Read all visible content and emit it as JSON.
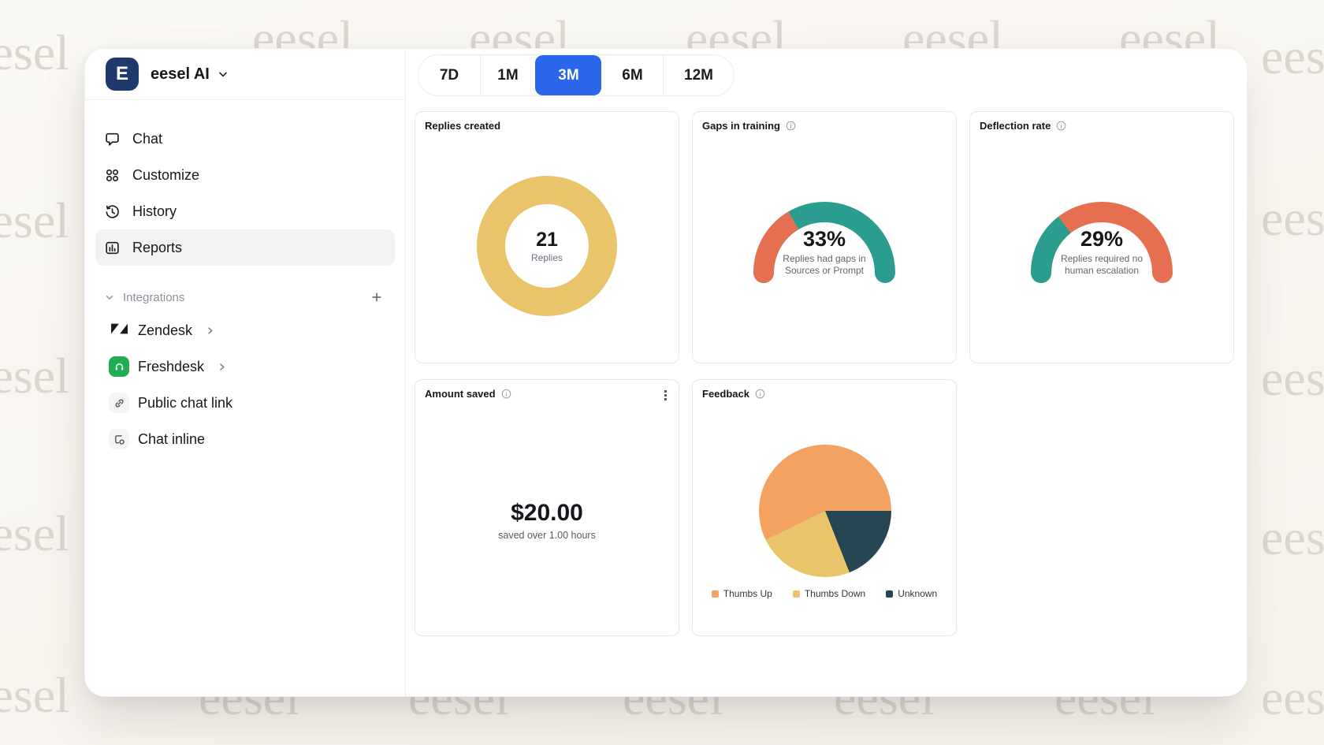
{
  "watermark": {
    "text": "eesel"
  },
  "colors": {
    "accent_blue": "#2B65E9",
    "logo_navy": "#1E3A6D",
    "freshdesk_green": "#22AD52",
    "chart_yellow": "#E9C46A",
    "chart_orange": "#F4A261",
    "chart_salmon": "#E76F51",
    "chart_teal": "#2A9D8F",
    "chart_charcoal": "#264653"
  },
  "sidebar": {
    "workspace": {
      "initial": "E",
      "name": "eesel AI"
    },
    "nav": [
      {
        "label": "Chat",
        "icon": "chat-bubble",
        "active": false
      },
      {
        "label": "Customize",
        "icon": "grid-dots",
        "active": false
      },
      {
        "label": "History",
        "icon": "clock-history",
        "active": false
      },
      {
        "label": "Reports",
        "icon": "bar-chart",
        "active": true
      }
    ],
    "integrations": {
      "label": "Integrations",
      "add_label": "+",
      "items": [
        {
          "label": "Zendesk",
          "icon": "zendesk-logo"
        },
        {
          "label": "Freshdesk",
          "icon": "freshdesk-logo"
        },
        {
          "label": "Public chat link",
          "icon": "link"
        },
        {
          "label": "Chat inline",
          "icon": "embed-chat"
        }
      ]
    }
  },
  "time_range": {
    "options": [
      "7D",
      "1M",
      "3M",
      "6M",
      "12M"
    ],
    "selected": "3M"
  },
  "cards": {
    "replies_created": {
      "title": "Replies created",
      "value": "21",
      "label": "Replies"
    },
    "gaps_in_training": {
      "title": "Gaps in training",
      "value": "33%",
      "line1": "Replies had gaps in",
      "line2": "Sources or Prompt"
    },
    "deflection_rate": {
      "title": "Deflection rate",
      "value": "29%",
      "line1": "Replies required no",
      "line2": "human escalation"
    },
    "amount_saved": {
      "title": "Amount saved",
      "value": "$20.00",
      "subtitle": "saved over 1.00 hours"
    },
    "feedback": {
      "title": "Feedback"
    }
  },
  "chart_data": [
    {
      "type": "pie",
      "variant": "donut",
      "title": "Replies created",
      "slices": [
        {
          "label": "Replies",
          "value": 21,
          "color": "#E9C46A"
        }
      ],
      "center_value": "21",
      "center_label": "Replies"
    },
    {
      "type": "pie",
      "variant": "half-gauge",
      "title": "Gaps in training",
      "percent": 33,
      "segment_color": "#E76F51",
      "remainder_color": "#2A9D8F",
      "caption": "Replies had gaps in Sources or Prompt"
    },
    {
      "type": "pie",
      "variant": "half-gauge",
      "title": "Deflection rate",
      "percent": 29,
      "segment_color": "#2A9D8F",
      "remainder_color": "#E76F51",
      "caption": "Replies required no human escalation"
    },
    {
      "type": "pie",
      "title": "Feedback",
      "legend_position": "bottom",
      "slices": [
        {
          "label": "Thumbs Up",
          "value": 57.2,
          "color": "#F4A261"
        },
        {
          "label": "Thumbs Down",
          "value": 23.8,
          "color": "#E9C46A"
        },
        {
          "label": "Unknown",
          "value": 19.0,
          "color": "#264653"
        }
      ]
    }
  ]
}
